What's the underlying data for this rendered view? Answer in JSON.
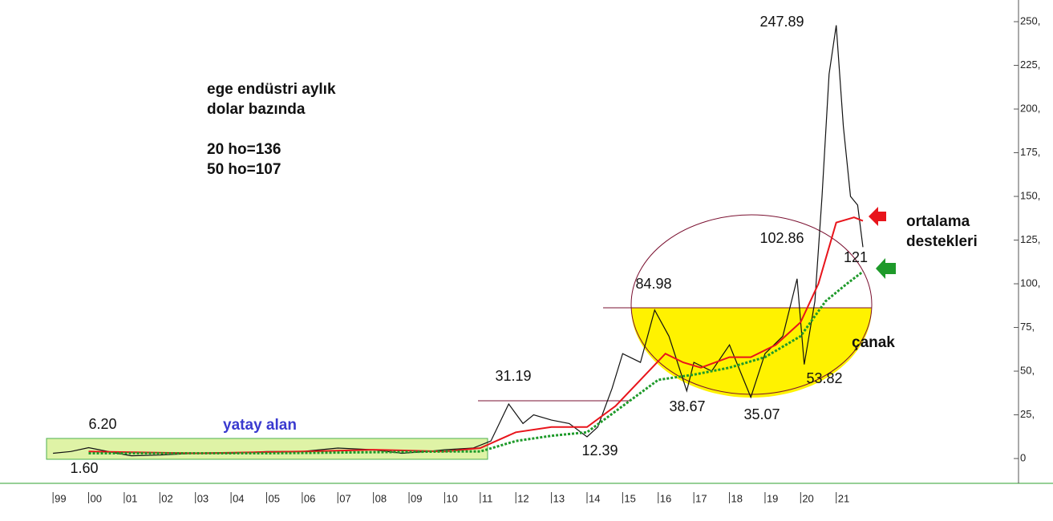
{
  "chart_data": {
    "type": "line",
    "x": null,
    "xlim": [
      1997.51,
      2026.12
    ],
    "ylim": [
      -14.2,
      262.4
    ],
    "xticks": [
      {
        "value": 1999,
        "label": "99"
      },
      {
        "value": 2000,
        "label": "00"
      },
      {
        "value": 2001,
        "label": "01"
      },
      {
        "value": 2002,
        "label": "02"
      },
      {
        "value": 2003,
        "label": "03"
      },
      {
        "value": 2004,
        "label": "04"
      },
      {
        "value": 2005,
        "label": "05"
      },
      {
        "value": 2006,
        "label": "06"
      },
      {
        "value": 2007,
        "label": "07"
      },
      {
        "value": 2008,
        "label": "08"
      },
      {
        "value": 2009,
        "label": "09"
      },
      {
        "value": 2010,
        "label": "10"
      },
      {
        "value": 2011,
        "label": "11"
      },
      {
        "value": 2012,
        "label": "12"
      },
      {
        "value": 2013,
        "label": "13"
      },
      {
        "value": 2014,
        "label": "14"
      },
      {
        "value": 2015,
        "label": "15"
      },
      {
        "value": 2016,
        "label": "16"
      },
      {
        "value": 2017,
        "label": "17"
      },
      {
        "value": 2018,
        "label": "18"
      },
      {
        "value": 2019,
        "label": "19"
      },
      {
        "value": 2020,
        "label": "20"
      },
      {
        "value": 2021,
        "label": "21"
      }
    ],
    "yticks": [
      0,
      {
        "value": 25,
        "label": "25,"
      },
      {
        "value": 50,
        "label": "50,"
      },
      {
        "value": 75,
        "label": "75,"
      },
      {
        "value": 100,
        "label": "100,"
      },
      {
        "value": 125,
        "label": "125,"
      },
      {
        "value": 150,
        "label": "150,"
      },
      {
        "value": 175,
        "label": "175,"
      },
      {
        "value": 200,
        "label": "200,"
      },
      {
        "value": 225,
        "label": "225,"
      },
      {
        "value": 250,
        "label": "250,"
      }
    ],
    "series": [
      {
        "color": "#111111",
        "x": [
          1999.0,
          1999.5,
          2000.0,
          2000.3,
          2000.8,
          2001.2,
          2002,
          2003,
          2004,
          2005,
          2006,
          2007,
          2008,
          2008.8,
          2009.5,
          2010,
          2010.8,
          2011.3,
          2011.8,
          2012.2,
          2012.5,
          2013,
          2013.5,
          2014,
          2014.3,
          2014.7,
          2015,
          2015.5,
          2015.9,
          2016.3,
          2016.8,
          2017,
          2017.5,
          2018,
          2018.4,
          2018.6,
          2019,
          2019.5,
          2019.9,
          2020.1,
          2020.4,
          2020.6,
          2020.8,
          2021.0,
          2021.2,
          2021.4,
          2021.6,
          2021.75
        ],
        "values": [
          3,
          4,
          6.2,
          5,
          3,
          1.6,
          2,
          3,
          3,
          4,
          4,
          6,
          5,
          3,
          4,
          5,
          6,
          10,
          31.19,
          20,
          25,
          22,
          20,
          12.39,
          18,
          40,
          60,
          55,
          84.98,
          70,
          38.67,
          55,
          50,
          65,
          45,
          35.07,
          60,
          70,
          102.86,
          53.82,
          90,
          150,
          220,
          247.89,
          190,
          150,
          145,
          121
        ]
      },
      {
        "color": "#e8141b",
        "x": [
          2000,
          2003,
          2006,
          2008,
          2010,
          2011,
          2012,
          2013,
          2014,
          2014.8,
          2015.5,
          2016.2,
          2016.7,
          2017.2,
          2018,
          2018.6,
          2019.3,
          2020,
          2020.5,
          2021,
          2021.5,
          2021.75
        ],
        "values": [
          4,
          3,
          4,
          5,
          4,
          6,
          15,
          18,
          18,
          30,
          45,
          60,
          55,
          52,
          58,
          58,
          65,
          78,
          100,
          135,
          138,
          136
        ]
      },
      {
        "color": "#1e9a2a",
        "x": [
          2000,
          2005,
          2010,
          2011,
          2012,
          2013,
          2014,
          2015,
          2016,
          2017,
          2018,
          2019,
          2020,
          2020.7,
          2021.3,
          2021.75
        ],
        "values": [
          3,
          3,
          4,
          4,
          10,
          13,
          15,
          30,
          45,
          48,
          52,
          58,
          70,
          90,
          100,
          107
        ]
      }
    ],
    "annotations": [
      "247.89",
      "ege endüstri aylık",
      "dolar bazında",
      "20 ho=136",
      "50 ho=107",
      "ortalama",
      "destekleri",
      "102.86",
      "121",
      "84.98",
      "çanak",
      "31.19",
      "53.82",
      "38.67",
      "35.07",
      "6.20",
      "yatay alan",
      "12.39",
      "1.60"
    ]
  }
}
